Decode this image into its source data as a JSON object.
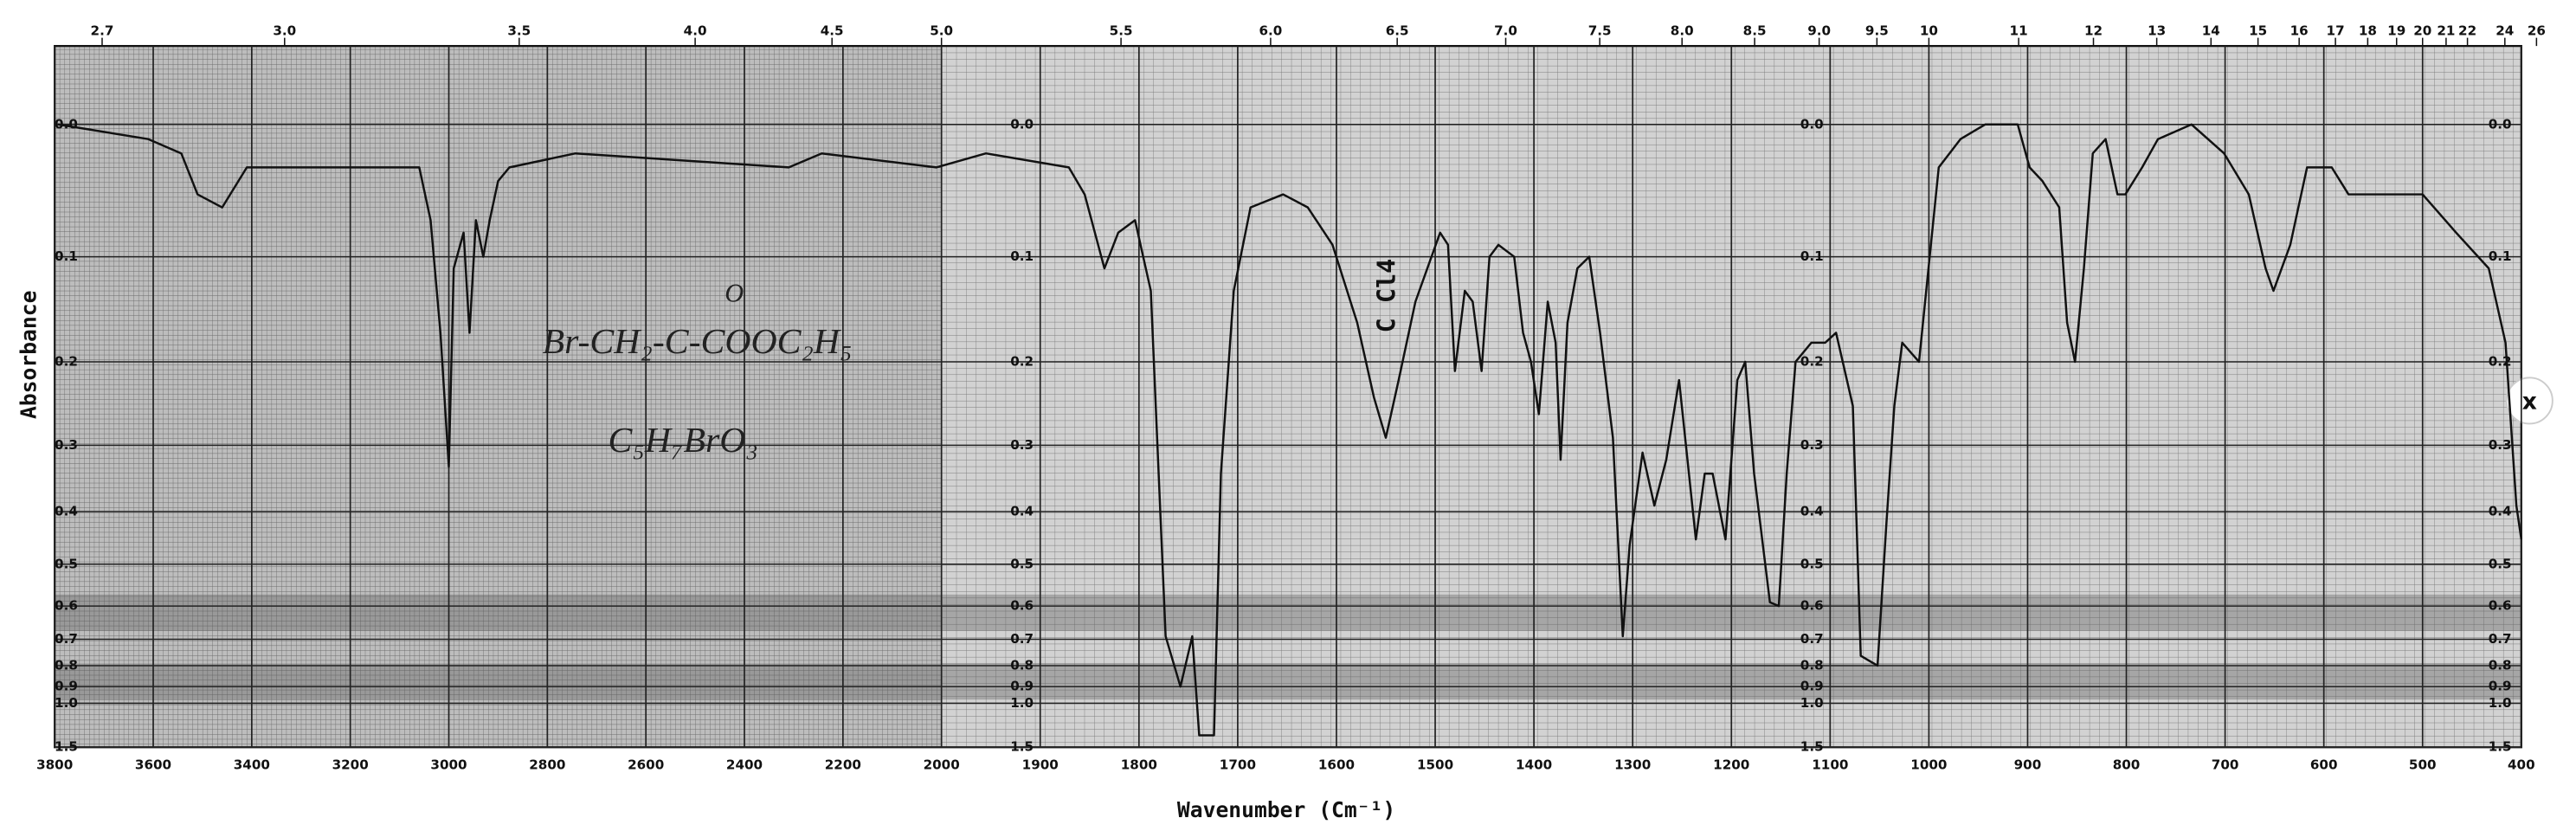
{
  "chart_data": {
    "type": "line",
    "x_label": "Wavenumber (Cm⁻¹)",
    "y_label": "Absorbance",
    "xlim": [
      3800,
      400
    ],
    "xscale": {
      "type": "piecewise",
      "breaks": [
        3800,
        2000,
        400
      ]
    },
    "xticks": [
      3800,
      3600,
      3400,
      3200,
      3000,
      2800,
      2600,
      2400,
      2200,
      2000,
      1900,
      1800,
      1700,
      1600,
      1500,
      1400,
      1300,
      1200,
      1100,
      1000,
      900,
      800,
      700,
      600,
      500,
      400
    ],
    "x2ticks": [
      2.7,
      {
        "value": 3,
        "label": "3.0"
      },
      3.5,
      {
        "value": 4,
        "label": "4.0"
      },
      4.5,
      {
        "value": 5,
        "label": "5.0"
      },
      5.5,
      {
        "value": 6,
        "label": "6.0"
      },
      6.5,
      {
        "value": 7,
        "label": "7.0"
      },
      7.5,
      {
        "value": 8,
        "label": "8.0"
      },
      8.5,
      {
        "value": 9,
        "label": "9.0"
      },
      9.5,
      10,
      11,
      12,
      13,
      14,
      15,
      16,
      17,
      18,
      19,
      20,
      21,
      22,
      24,
      26
    ],
    "ylim": [
      -0.05,
      1.5
    ],
    "y_scale": "transmittance",
    "yticks": [
      {
        "value": 0,
        "label": "0.0"
      },
      0.1,
      0.2,
      0.3,
      0.4,
      0.5,
      0.6,
      0.7,
      0.8,
      0.9,
      {
        "value": 1,
        "label": "1.0"
      },
      1.5
    ],
    "grid": true,
    "color": "#111111",
    "x": [
      3793,
      3610,
      3543,
      3510,
      3460,
      3410,
      3243,
      3060,
      3037,
      3017,
      3000,
      2990,
      2970,
      2958,
      2945,
      2930,
      2917,
      2900,
      2877,
      2743,
      2310,
      2243,
      2010,
      1955,
      1871,
      1855,
      1835,
      1821,
      1804,
      1788,
      1773,
      1758,
      1746,
      1739,
      1724,
      1717,
      1704,
      1687,
      1654,
      1629,
      1604,
      1579,
      1562,
      1550,
      1537,
      1520,
      1495,
      1487,
      1480,
      1470,
      1462,
      1453,
      1445,
      1436,
      1420,
      1411,
      1403,
      1395,
      1386,
      1378,
      1373,
      1366,
      1356,
      1344,
      1333,
      1320,
      1310,
      1303,
      1290,
      1278,
      1266,
      1253,
      1236,
      1227,
      1219,
      1206,
      1194,
      1186,
      1177,
      1161,
      1152,
      1144,
      1135,
      1119,
      1105,
      1094,
      1077,
      1069,
      1052,
      1043,
      1035,
      1027,
      1010,
      990,
      968,
      943,
      910,
      898,
      885,
      868,
      860,
      852,
      843,
      834,
      821,
      809,
      801,
      784,
      768,
      734,
      701,
      676,
      659,
      651,
      634,
      617,
      592,
      575,
      558,
      533,
      500,
      466,
      433,
      416,
      405,
      400
    ],
    "values": [
      0.0,
      0.01,
      0.02,
      0.05,
      0.06,
      0.03,
      0.03,
      0.03,
      0.07,
      0.17,
      0.33,
      0.11,
      0.08,
      0.17,
      0.07,
      0.1,
      0.07,
      0.04,
      0.03,
      0.02,
      0.03,
      0.02,
      0.03,
      0.02,
      0.03,
      0.05,
      0.11,
      0.08,
      0.07,
      0.13,
      0.69,
      0.9,
      0.69,
      1.3,
      1.3,
      0.34,
      0.13,
      0.06,
      0.05,
      0.06,
      0.09,
      0.16,
      0.24,
      0.29,
      0.22,
      0.14,
      0.08,
      0.09,
      0.21,
      0.13,
      0.14,
      0.21,
      0.1,
      0.09,
      0.1,
      0.17,
      0.2,
      0.26,
      0.14,
      0.18,
      0.32,
      0.16,
      0.11,
      0.1,
      0.17,
      0.29,
      0.69,
      0.46,
      0.31,
      0.39,
      0.32,
      0.22,
      0.45,
      0.34,
      0.34,
      0.45,
      0.22,
      0.2,
      0.34,
      0.59,
      0.6,
      0.34,
      0.2,
      0.18,
      0.18,
      0.17,
      0.25,
      0.76,
      0.8,
      0.42,
      0.25,
      0.18,
      0.2,
      0.03,
      0.01,
      0.0,
      0.0,
      0.03,
      0.04,
      0.06,
      0.16,
      0.2,
      0.11,
      0.02,
      0.01,
      0.05,
      0.05,
      0.03,
      0.01,
      0.0,
      0.02,
      0.05,
      0.11,
      0.13,
      0.09,
      0.03,
      0.03,
      0.05,
      0.05,
      0.05,
      0.05,
      0.08,
      0.11,
      0.18,
      0.39,
      0.45
    ],
    "annotations": [
      {
        "text": "O"
      },
      {
        "text": "Br-CH₂-C-COOC₂H₅"
      },
      {
        "text": "C₅H₇BrO₃"
      },
      {
        "text": "C Cl4"
      }
    ]
  },
  "close_button": "x"
}
